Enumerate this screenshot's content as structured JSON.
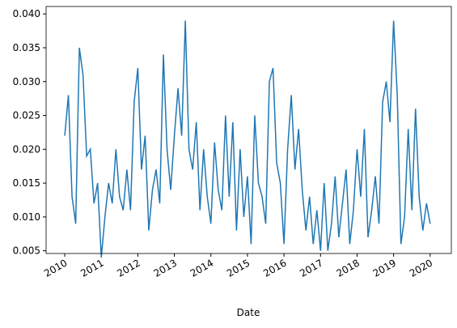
{
  "chart_data": {
    "type": "line",
    "xlabel": "Date",
    "x": [
      2010.0,
      2010.1,
      2010.2,
      2010.3,
      2010.4,
      2010.5,
      2010.6,
      2010.7,
      2010.8,
      2010.9,
      2011.0,
      2011.1,
      2011.2,
      2011.3,
      2011.4,
      2011.5,
      2011.6,
      2011.7,
      2011.8,
      2011.9,
      2012.0,
      2012.1,
      2012.2,
      2012.3,
      2012.4,
      2012.5,
      2012.6,
      2012.7,
      2012.8,
      2012.9,
      2013.0,
      2013.1,
      2013.2,
      2013.3,
      2013.4,
      2013.5,
      2013.6,
      2013.7,
      2013.8,
      2013.9,
      2014.0,
      2014.1,
      2014.2,
      2014.3,
      2014.4,
      2014.5,
      2014.6,
      2014.7,
      2014.8,
      2014.9,
      2015.0,
      2015.1,
      2015.2,
      2015.3,
      2015.4,
      2015.5,
      2015.6,
      2015.7,
      2015.8,
      2015.9,
      2016.0,
      2016.1,
      2016.2,
      2016.3,
      2016.4,
      2016.5,
      2016.6,
      2016.7,
      2016.8,
      2016.9,
      2017.0,
      2017.1,
      2017.2,
      2017.3,
      2017.4,
      2017.5,
      2017.6,
      2017.7,
      2017.8,
      2017.9,
      2018.0,
      2018.1,
      2018.2,
      2018.3,
      2018.4,
      2018.5,
      2018.6,
      2018.7,
      2018.8,
      2018.9,
      2019.0,
      2019.1,
      2019.2,
      2019.3,
      2019.4,
      2019.5,
      2019.6,
      2019.7,
      2019.8,
      2019.9,
      2020.0
    ],
    "series": [
      {
        "color": "#1f77b4",
        "values": [
          0.022,
          0.028,
          0.013,
          0.009,
          0.035,
          0.031,
          0.019,
          0.02,
          0.012,
          0.015,
          0.004,
          0.01,
          0.015,
          0.012,
          0.02,
          0.013,
          0.011,
          0.017,
          0.011,
          0.027,
          0.032,
          0.017,
          0.022,
          0.008,
          0.014,
          0.017,
          0.012,
          0.034,
          0.02,
          0.014,
          0.022,
          0.029,
          0.022,
          0.039,
          0.02,
          0.017,
          0.024,
          0.011,
          0.02,
          0.013,
          0.009,
          0.021,
          0.014,
          0.011,
          0.025,
          0.013,
          0.024,
          0.008,
          0.02,
          0.01,
          0.016,
          0.006,
          0.025,
          0.015,
          0.013,
          0.009,
          0.03,
          0.032,
          0.018,
          0.015,
          0.006,
          0.02,
          0.028,
          0.017,
          0.023,
          0.014,
          0.008,
          0.013,
          0.006,
          0.011,
          0.005,
          0.015,
          0.005,
          0.009,
          0.016,
          0.007,
          0.012,
          0.017,
          0.006,
          0.011,
          0.02,
          0.013,
          0.023,
          0.007,
          0.011,
          0.016,
          0.009,
          0.027,
          0.03,
          0.024,
          0.039,
          0.028,
          0.006,
          0.01,
          0.023,
          0.011,
          0.026,
          0.013,
          0.008,
          0.012,
          0.009
        ]
      }
    ],
    "xlim": [
      2009.49,
      2020.58
    ],
    "xticks": [
      2010,
      2011,
      2012,
      2013,
      2014,
      2015,
      2016,
      2017,
      2018,
      2019,
      2020
    ],
    "ylim": [
      0.0046,
      0.0411
    ],
    "yticks": [
      {
        "value": 0.005,
        "label": "0.005"
      },
      {
        "value": 0.01,
        "label": "0.010"
      },
      {
        "value": 0.015,
        "label": "0.015"
      },
      {
        "value": 0.02,
        "label": "0.020"
      },
      {
        "value": 0.025,
        "label": "0.025"
      },
      {
        "value": 0.03,
        "label": "0.030"
      },
      {
        "value": 0.035,
        "label": "0.035"
      },
      {
        "value": 0.04,
        "label": "0.040"
      }
    ]
  }
}
